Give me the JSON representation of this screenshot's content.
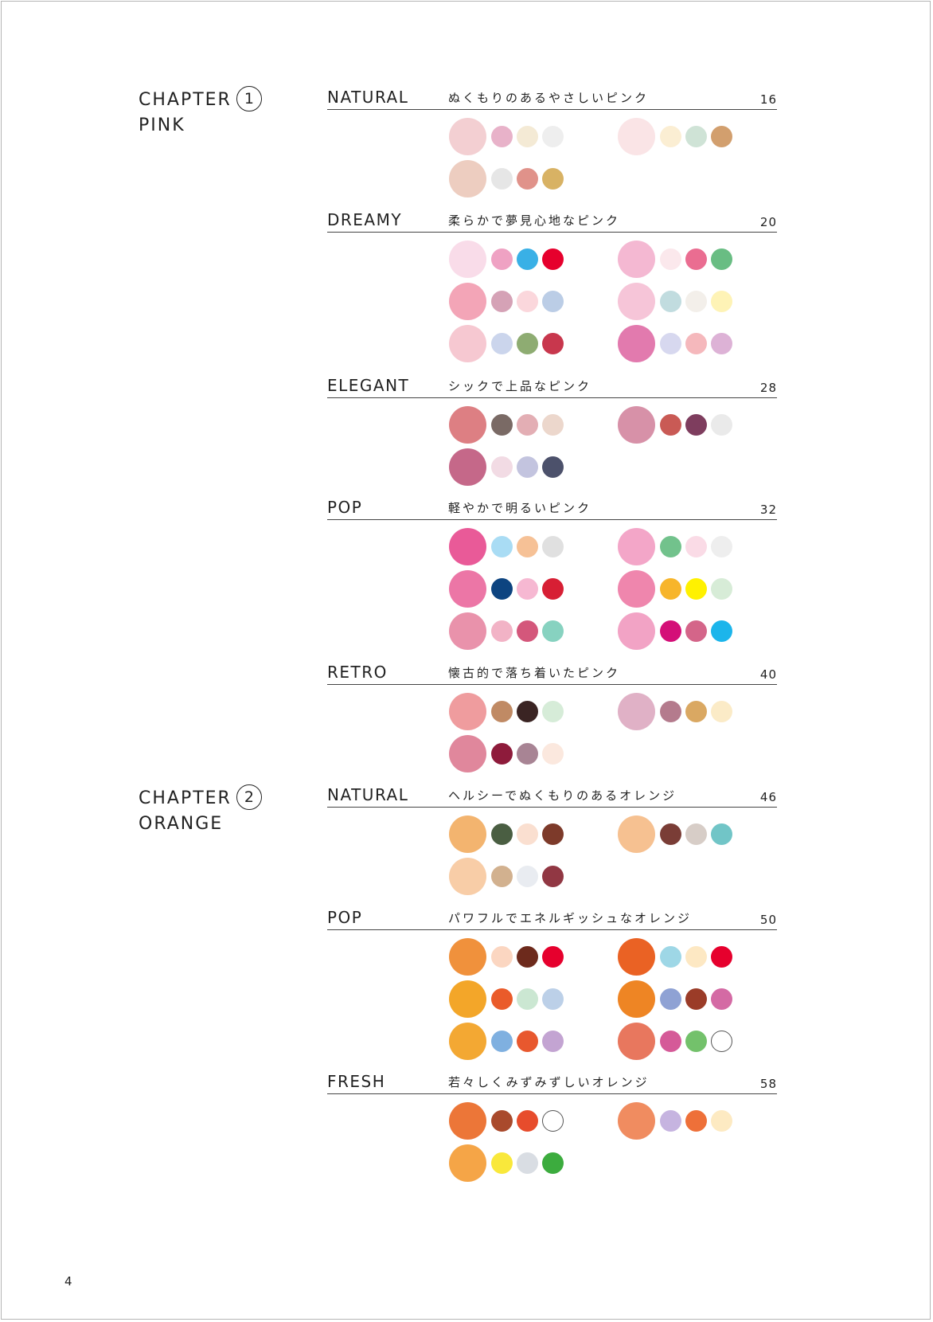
{
  "chapters": [
    {
      "label": "CHAPTER",
      "number": "1",
      "name": "PINK"
    },
    {
      "label": "CHAPTER",
      "number": "2",
      "name": "ORANGE"
    }
  ],
  "sections": [
    {
      "name": "NATURAL",
      "desc": "ぬくもりのあるやさしいピンク",
      "page": "16",
      "palettes": [
        [
          "#f3cfd2",
          "#e8b2c9",
          "#f4ead5",
          "#eeeeee"
        ],
        [
          "#fae4e6",
          "#fbeed3",
          "#cfe3d6",
          "#d29f6e"
        ],
        [
          "#edcdc0",
          "#e6e6e6",
          "#e0928a",
          "#d8b264"
        ]
      ]
    },
    {
      "name": "DREAMY",
      "desc": "柔らかで夢見心地なピンク",
      "page": "20",
      "palettes": [
        [
          "#f9dce9",
          "#efa2c3",
          "#39b0e6",
          "#e6002d"
        ],
        [
          "#f4b8d2",
          "#fbe8ec",
          "#ea6d91",
          "#69bd83"
        ],
        [
          "#f3a5b7",
          "#d5a2b6",
          "#fbd7dc",
          "#bbcde6"
        ],
        [
          "#f6c5d8",
          "#c1dcdf",
          "#f3efea",
          "#fef3b6"
        ],
        [
          "#f6c8d1",
          "#cbd5ec",
          "#8eac72",
          "#c8374d"
        ],
        [
          "#e27aae",
          "#d7d8ef",
          "#f5b8bc",
          "#ddb2d6"
        ]
      ]
    },
    {
      "name": "ELEGANT",
      "desc": "シックで上品なピンク",
      "page": "28",
      "palettes": [
        [
          "#dd7f83",
          "#7a6a65",
          "#e3aeb4",
          "#ecd7cc"
        ],
        [
          "#d791a8",
          "#c95a55",
          "#7e3d5e",
          "#eaeaea"
        ],
        [
          "#c56889",
          "#f2dbe4",
          "#c3c4df",
          "#4c516b"
        ]
      ]
    },
    {
      "name": "POP",
      "desc": "軽やかで明るいピンク",
      "page": "32",
      "palettes": [
        [
          "#e95a98",
          "#a9dcf4",
          "#f6c196",
          "#e0e0e0"
        ],
        [
          "#f3a6c8",
          "#72c28c",
          "#fadbe6",
          "#eeeeee"
        ],
        [
          "#ec76a6",
          "#0d4480",
          "#f6b8d2",
          "#d71f34"
        ],
        [
          "#ef86ad",
          "#f7b52b",
          "#fff100",
          "#d7ecd7"
        ],
        [
          "#e992ab",
          "#f2b3c6",
          "#d4577b",
          "#87d2c0"
        ],
        [
          "#f2a3c5",
          "#d40f78",
          "#d46589",
          "#1cb5eb"
        ]
      ]
    },
    {
      "name": "RETRO",
      "desc": "懐古的で落ち着いたピンク",
      "page": "40",
      "palettes": [
        [
          "#ef9c9e",
          "#c08a64",
          "#3a2423",
          "#d6ecd8"
        ],
        [
          "#e0b1c6",
          "#b47b8d",
          "#daa862",
          "#fbebc7"
        ],
        [
          "#e0879c",
          "#8e1b3b",
          "#a88494",
          "#fbe8de"
        ]
      ]
    },
    {
      "name": "NATURAL",
      "desc": "ヘルシーでぬくもりのあるオレンジ",
      "page": "46",
      "palettes": [
        [
          "#f3b46f",
          "#4a5e42",
          "#fadfd0",
          "#7d3a2a"
        ],
        [
          "#f6c191",
          "#7a3d36",
          "#d7cdc7",
          "#71c5c7"
        ],
        [
          "#f8cda7",
          "#d2b18f",
          "#e9ecf1",
          "#913743"
        ]
      ]
    },
    {
      "name": "POP",
      "desc": "パワフルでエネルギッシュなオレンジ",
      "page": "50",
      "palettes": [
        [
          "#f0913c",
          "#fbd6c1",
          "#6d2a1c",
          "#e6002d"
        ],
        [
          "#ea6224",
          "#9ed7e6",
          "#fde8c3",
          "#e6002d"
        ],
        [
          "#f3a629",
          "#ea5b2a",
          "#cbe7d2",
          "#bcd0e8"
        ],
        [
          "#ee8524",
          "#8fa2d4",
          "#9b3c28",
          "#d46aa4"
        ],
        [
          "#f3a833",
          "#7fb0e0",
          "#e8582e",
          "#c3a4d2"
        ],
        [
          "#e8775e",
          "#d55a98",
          "#73c16b",
          "outline"
        ]
      ]
    },
    {
      "name": "FRESH",
      "desc": "若々しくみずみずしいオレンジ",
      "page": "58",
      "palettes": [
        [
          "#ec7638",
          "#a94a2c",
          "#e74c2c",
          "outline"
        ],
        [
          "#f08c60",
          "#c6b4e0",
          "#ee7039",
          "#fdeac2"
        ],
        [
          "#f5a547",
          "#f9e83b",
          "#d9dde3",
          "#3cac3e"
        ]
      ]
    }
  ],
  "page_number": "4"
}
